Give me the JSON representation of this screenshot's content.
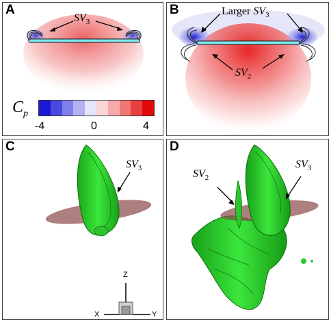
{
  "panels": {
    "A": {
      "label": "A",
      "annotation": {
        "sym": "SV",
        "sub": "3"
      }
    },
    "B": {
      "label": "B",
      "annotation_top": {
        "prefix": "Larger ",
        "sym": "SV",
        "sub": "3"
      },
      "annotation_mid": {
        "sym": "SV",
        "sub": "2"
      }
    },
    "C": {
      "label": "C",
      "annotation": {
        "sym": "SV",
        "sub": "3"
      },
      "axes": {
        "z": "Z",
        "x": "X",
        "y": "Y"
      }
    },
    "D": {
      "label": "D",
      "annotation_left": {
        "sym": "SV",
        "sub": "2"
      },
      "annotation_right": {
        "sym": "SV",
        "sub": "3"
      }
    }
  },
  "colorbar": {
    "symbol": "C",
    "sub": "p",
    "ticks": [
      "-4",
      "0",
      "4"
    ],
    "colors": [
      "#1a1ad6",
      "#4a4ae0",
      "#7f7feb",
      "#b3b3f3",
      "#e6e6fa",
      "#fbd6d6",
      "#f7a8a8",
      "#f07676",
      "#e84040",
      "#e00a0a"
    ]
  }
}
